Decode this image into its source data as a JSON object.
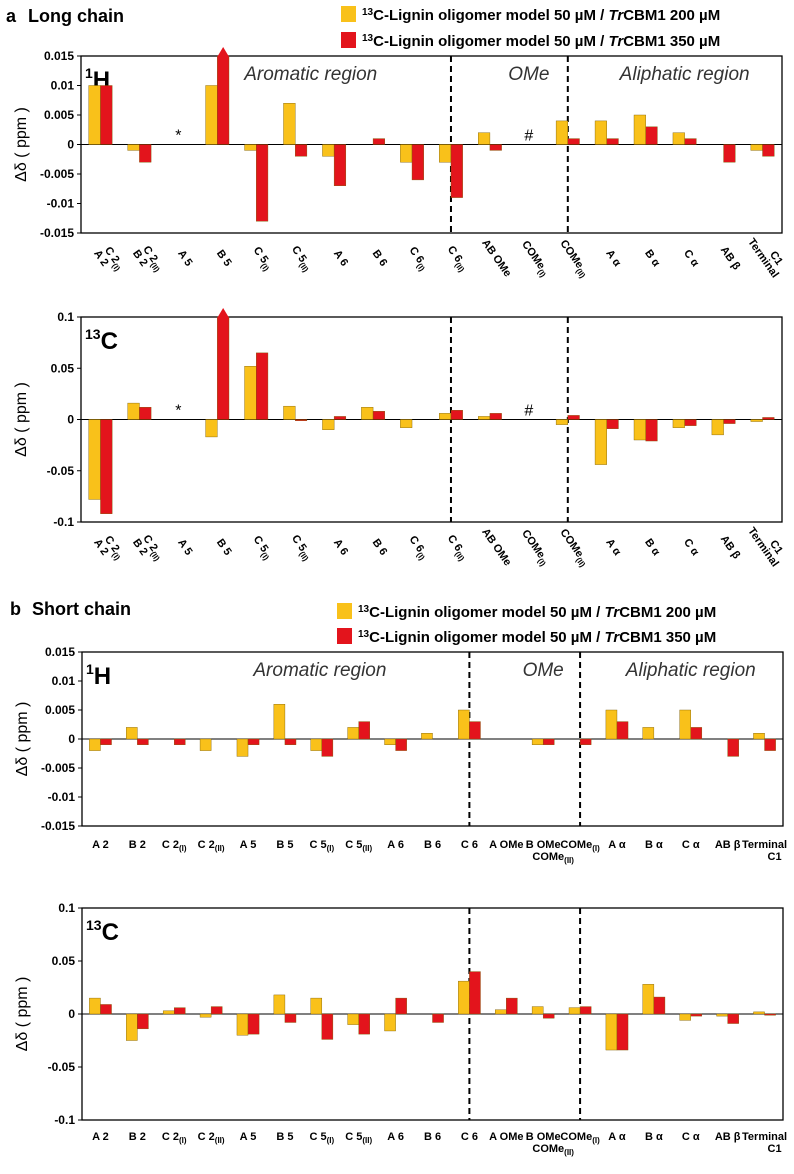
{
  "colors": {
    "yellow": "#F9C11A",
    "red": "#E3141C",
    "axis": "#000000",
    "divider": "#000000"
  },
  "legend": [
    {
      "color": "#F9C11A",
      "text": "13C-Lignin oligomer model 50 µM / TrCBM1 200 µM"
    },
    {
      "color": "#E3141C",
      "text": "13C-Lignin oligomer model 50 µM / TrCBM1 350 µM"
    }
  ],
  "chart_data": [
    {
      "panel": "a",
      "title": "Long chain",
      "nucleus": "1H",
      "type": "bar",
      "ylabel": "Δδ ( ppm )",
      "ylim": [
        -0.015,
        0.015
      ],
      "yticks": [
        "0.015",
        "0.01",
        "0.005",
        "0",
        "-0.005",
        "-0.01",
        "-0.015"
      ],
      "categories": [
        [
          "A 2",
          "C 2(I)"
        ],
        [
          "B 2",
          "C 2(II)"
        ],
        [
          "A 5"
        ],
        [
          "B 5"
        ],
        [
          "C 5(I)"
        ],
        [
          "C 5(II)"
        ],
        [
          "A 6"
        ],
        [
          "B 6"
        ],
        [
          "C 6(I)"
        ],
        [
          "C 6(II)"
        ],
        [
          "AB OMe"
        ],
        [
          "COMe(I)"
        ],
        [
          "COMe(II)"
        ],
        [
          "A α"
        ],
        [
          "B α"
        ],
        [
          "C α"
        ],
        [
          "AB β"
        ],
        [
          "Terminal",
          "C1"
        ]
      ],
      "series": [
        {
          "name": "200 µM",
          "values": [
            0.01,
            -0.001,
            null,
            0.01,
            -0.001,
            0.007,
            -0.002,
            null,
            -0.003,
            -0.003,
            0.002,
            null,
            0.004,
            0.004,
            0.005,
            0.002,
            null,
            -0.001
          ]
        },
        {
          "name": "350 µM",
          "values": [
            0.01,
            -0.003,
            null,
            0.016,
            -0.013,
            -0.002,
            -0.007,
            0.001,
            -0.006,
            -0.009,
            -0.001,
            null,
            0.001,
            0.001,
            0.003,
            0.001,
            -0.003,
            -0.002
          ]
        }
      ],
      "regions": [
        {
          "label": "Aromatic region",
          "from": 0,
          "to": 9
        },
        {
          "label": "OMe",
          "from": 10,
          "to": 12
        },
        {
          "label": "Aliphatic region",
          "from": 13,
          "to": 17
        }
      ],
      "dividers": [
        9.5,
        12.5
      ],
      "annotations": [
        {
          "text": "*",
          "index": 2
        },
        {
          "text": "#",
          "index": 11
        }
      ],
      "overflow_marker_index": 3
    },
    {
      "panel": "a",
      "title": "Long chain",
      "nucleus": "13C",
      "type": "bar",
      "ylabel": "Δδ ( ppm )",
      "ylim": [
        -0.1,
        0.1
      ],
      "yticks": [
        "0.1",
        "0.05",
        "0",
        "-0.05",
        "-0.1"
      ],
      "categories": [
        [
          "A 2",
          "C 2(I)"
        ],
        [
          "B 2",
          "C 2(II)"
        ],
        [
          "A 5"
        ],
        [
          "B 5"
        ],
        [
          "C 5(I)"
        ],
        [
          "C 5(II)"
        ],
        [
          "A 6"
        ],
        [
          "B 6"
        ],
        [
          "C 6(I)"
        ],
        [
          "C 6(II)"
        ],
        [
          "AB OMe"
        ],
        [
          "COMe(I)"
        ],
        [
          "COMe(II)"
        ],
        [
          "A α"
        ],
        [
          "B α"
        ],
        [
          "C α"
        ],
        [
          "AB β"
        ],
        [
          "Terminal",
          "C1"
        ]
      ],
      "series": [
        {
          "name": "200 µM",
          "values": [
            -0.078,
            0.016,
            null,
            -0.017,
            0.052,
            0.013,
            -0.01,
            0.012,
            -0.008,
            0.006,
            0.003,
            null,
            -0.005,
            -0.044,
            -0.02,
            -0.008,
            -0.015,
            -0.002
          ]
        },
        {
          "name": "350 µM",
          "values": [
            -0.092,
            0.012,
            null,
            0.105,
            0.065,
            -0.001,
            0.003,
            0.008,
            null,
            0.009,
            0.006,
            null,
            0.004,
            -0.009,
            -0.021,
            -0.006,
            -0.004,
            0.002
          ]
        }
      ],
      "regions": [],
      "dividers": [
        9.5,
        12.5
      ],
      "annotations": [
        {
          "text": "*",
          "index": 2
        },
        {
          "text": "#",
          "index": 11
        }
      ],
      "overflow_marker_index": 3
    },
    {
      "panel": "b",
      "title": "Short chain",
      "nucleus": "1H",
      "type": "bar",
      "ylabel": "Δδ ( ppm )",
      "ylim": [
        -0.015,
        0.015
      ],
      "yticks": [
        "0.015",
        "0.01",
        "0.005",
        "0",
        "-0.005",
        "-0.01",
        "-0.015"
      ],
      "categories": [
        [
          "A 2"
        ],
        [
          "B 2"
        ],
        [
          "C 2(I)"
        ],
        [
          "C 2(II)"
        ],
        [
          "A 5"
        ],
        [
          "B 5"
        ],
        [
          "C 5(I)"
        ],
        [
          "C 5(II)"
        ],
        [
          "A 6"
        ],
        [
          "B 6"
        ],
        [
          "C 6"
        ],
        [
          "A OMe"
        ],
        [
          "B OMe",
          "COMe(II)"
        ],
        [
          "COMe(I)"
        ],
        [
          "A α"
        ],
        [
          "B α"
        ],
        [
          "C α"
        ],
        [
          "AB β"
        ],
        [
          "Terminal",
          "C1"
        ]
      ],
      "series": [
        {
          "name": "200 µM",
          "values": [
            -0.002,
            0.002,
            null,
            -0.002,
            -0.003,
            0.006,
            -0.002,
            0.002,
            -0.001,
            0.001,
            0.005,
            null,
            -0.001,
            null,
            0.005,
            0.002,
            0.005,
            null,
            0.001
          ]
        },
        {
          "name": "350 µM",
          "values": [
            -0.001,
            -0.001,
            -0.001,
            null,
            -0.001,
            -0.001,
            -0.003,
            0.003,
            -0.002,
            null,
            0.003,
            null,
            -0.001,
            -0.001,
            0.003,
            null,
            0.002,
            -0.003,
            -0.002
          ]
        }
      ],
      "regions": [
        {
          "label": "Aromatic region",
          "from": 0,
          "to": 10
        },
        {
          "label": "OMe",
          "from": 11,
          "to": 13
        },
        {
          "label": "Aliphatic region",
          "from": 14,
          "to": 18
        }
      ],
      "dividers": [
        10.5,
        13.5
      ],
      "annotations": [],
      "overflow_marker_index": null
    },
    {
      "panel": "b",
      "title": "Short chain",
      "nucleus": "13C",
      "type": "bar",
      "ylabel": "Δδ ( ppm )",
      "ylim": [
        -0.1,
        0.1
      ],
      "yticks": [
        "0.1",
        "0.05",
        "0",
        "-0.05",
        "-0.1"
      ],
      "categories": [
        [
          "A 2"
        ],
        [
          "B 2"
        ],
        [
          "C 2(I)"
        ],
        [
          "C 2(II)"
        ],
        [
          "A 5"
        ],
        [
          "B 5"
        ],
        [
          "C 5(I)"
        ],
        [
          "C 5(II)"
        ],
        [
          "A 6"
        ],
        [
          "B 6"
        ],
        [
          "C 6"
        ],
        [
          "A OMe"
        ],
        [
          "B OMe",
          "COMe(II)"
        ],
        [
          "COMe(I)"
        ],
        [
          "A α"
        ],
        [
          "B α"
        ],
        [
          "C α"
        ],
        [
          "AB β"
        ],
        [
          "Terminal",
          "C1"
        ]
      ],
      "series": [
        {
          "name": "200 µM",
          "values": [
            0.015,
            -0.025,
            0.003,
            -0.003,
            -0.02,
            0.018,
            0.015,
            -0.01,
            -0.016,
            null,
            0.031,
            0.004,
            0.007,
            0.006,
            -0.034,
            0.028,
            -0.006,
            -0.002,
            0.002
          ]
        },
        {
          "name": "350 µM",
          "values": [
            0.009,
            -0.014,
            0.006,
            0.007,
            -0.019,
            -0.008,
            -0.024,
            -0.019,
            0.015,
            -0.008,
            0.04,
            0.015,
            -0.004,
            0.007,
            -0.034,
            0.016,
            -0.002,
            -0.009,
            -0.001
          ]
        }
      ],
      "regions": [],
      "dividers": [
        10.5,
        13.5
      ],
      "annotations": [],
      "overflow_marker_index": null
    }
  ]
}
